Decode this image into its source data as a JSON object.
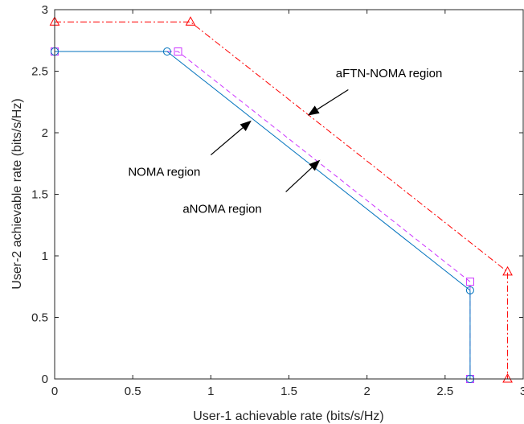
{
  "chart_data": {
    "type": "line",
    "xlabel": "User-1 achievable rate (bits/s/Hz)",
    "ylabel": "User-2 achievable rate (bits/s/Hz)",
    "xlim": [
      0,
      3
    ],
    "ylim": [
      0,
      3
    ],
    "xticks": [
      "0",
      "0.5",
      "1",
      "1.5",
      "2",
      "2.5",
      "3"
    ],
    "yticks": [
      "0",
      "0.5",
      "1",
      "1.5",
      "2",
      "2.5",
      "3"
    ],
    "grid": false,
    "legend": "none",
    "series": [
      {
        "key": "aftn",
        "color": "#ff0000",
        "dash": "dashdot",
        "marker": "triangle",
        "x": [
          0,
          0.87,
          2.9,
          2.9
        ],
        "y": [
          2.9,
          2.9,
          0.87,
          0
        ]
      },
      {
        "key": "anoma",
        "color": "#cc33ff",
        "dash": "dashed",
        "marker": "square",
        "x": [
          0,
          0.79,
          2.66,
          2.66
        ],
        "y": [
          2.66,
          2.66,
          0.79,
          0
        ]
      },
      {
        "key": "noma",
        "color": "#0072bd",
        "dash": "solid",
        "marker": "circle",
        "x": [
          0,
          0.72,
          2.66,
          2.66
        ],
        "y": [
          2.66,
          2.66,
          0.72,
          0
        ]
      }
    ],
    "annotations": [
      {
        "text": "aFTN-NOMA region",
        "text_x": 1.8,
        "text_y": 2.45,
        "arrow_from": [
          1.88,
          2.35
        ],
        "arrow_to": [
          1.62,
          2.14
        ],
        "anchor": "start"
      },
      {
        "text": "NOMA region",
        "text_x": 0.47,
        "text_y": 1.65,
        "arrow_from": [
          1.0,
          1.82
        ],
        "arrow_to": [
          1.26,
          2.1
        ],
        "anchor": "start"
      },
      {
        "text": "aNOMA region",
        "text_x": 0.82,
        "text_y": 1.35,
        "arrow_from": [
          1.48,
          1.52
        ],
        "arrow_to": [
          1.7,
          1.78
        ],
        "anchor": "start"
      }
    ]
  }
}
